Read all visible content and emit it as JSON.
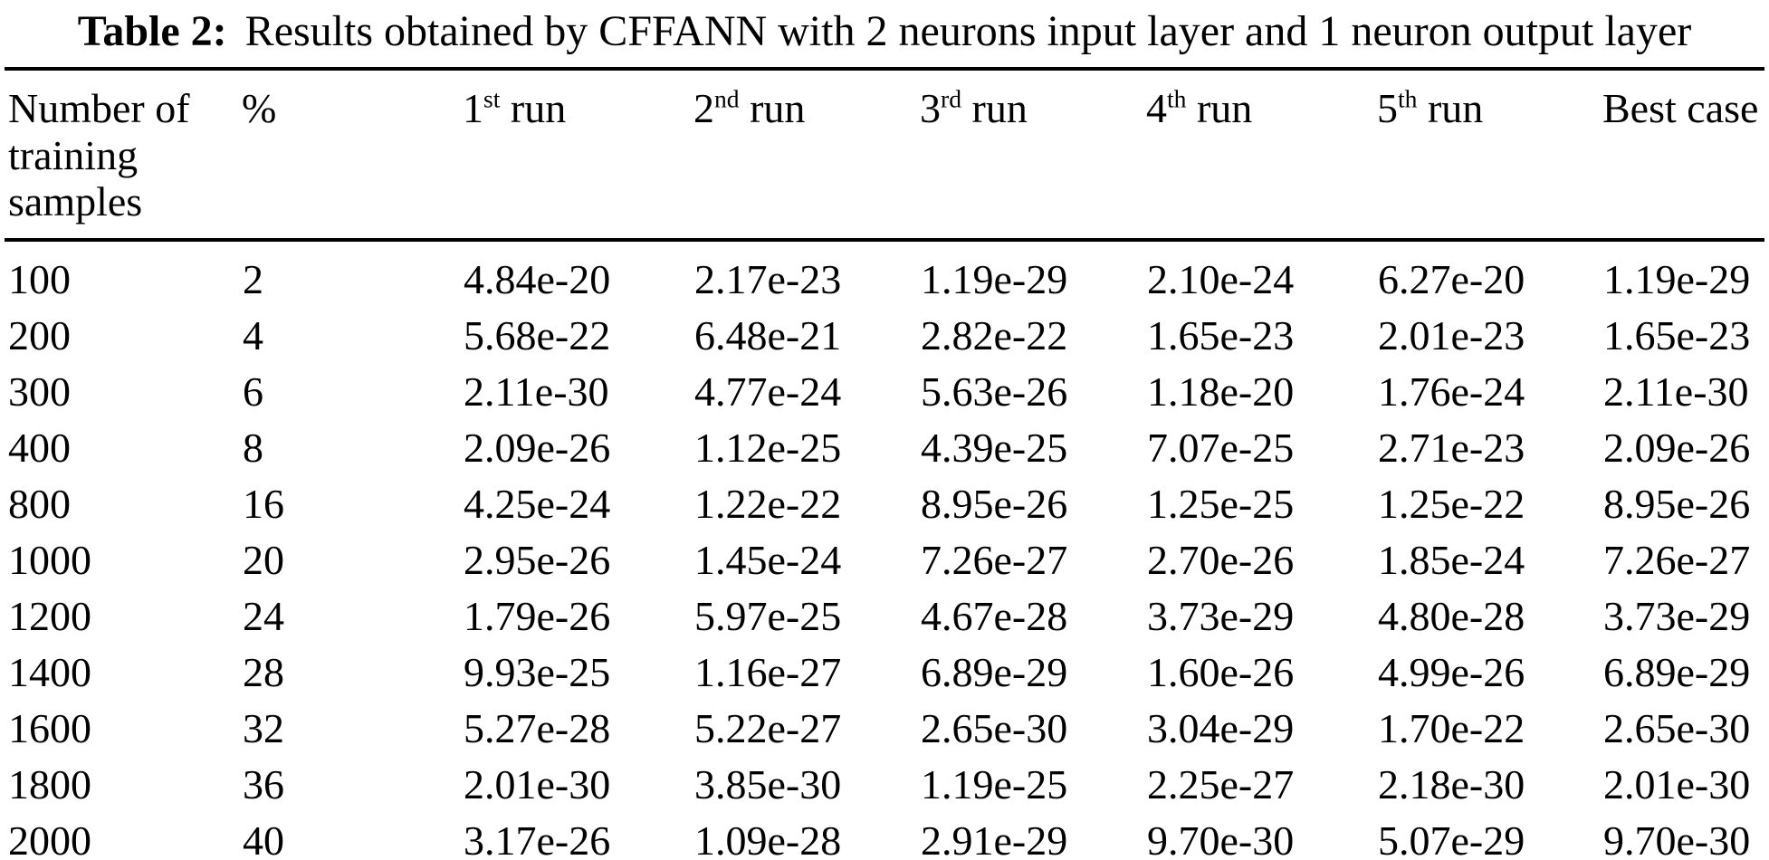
{
  "title": {
    "label": "Table 2:",
    "text": "Results obtained by CFFANN with 2 neurons input layer and 1 neuron output layer"
  },
  "colors": {
    "background": "#ffffff",
    "text": "#000000",
    "rule": "#000000"
  },
  "table": {
    "columns": [
      {
        "label": "Number of training samples"
      },
      {
        "label": "%"
      },
      {
        "num": "1",
        "sup": "st",
        "rest": " run"
      },
      {
        "num": "2",
        "sup": "nd",
        "rest": " run"
      },
      {
        "num": "3",
        "sup": "rd",
        "rest": " run"
      },
      {
        "num": "4",
        "sup": "th",
        "rest": " run"
      },
      {
        "num": "5",
        "sup": "th",
        "rest": " run"
      },
      {
        "label": "Best case"
      }
    ],
    "rows": [
      [
        "100",
        "2",
        "4.84e-20",
        "2.17e-23",
        "1.19e-29",
        "2.10e-24",
        "6.27e-20",
        "1.19e-29"
      ],
      [
        "200",
        "4",
        "5.68e-22",
        "6.48e-21",
        "2.82e-22",
        "1.65e-23",
        "2.01e-23",
        "1.65e-23"
      ],
      [
        "300",
        "6",
        "2.11e-30",
        "4.77e-24",
        "5.63e-26",
        "1.18e-20",
        "1.76e-24",
        "2.11e-30"
      ],
      [
        "400",
        "8",
        "2.09e-26",
        "1.12e-25",
        "4.39e-25",
        "7.07e-25",
        "2.71e-23",
        "2.09e-26"
      ],
      [
        "800",
        "16",
        "4.25e-24",
        "1.22e-22",
        "8.95e-26",
        "1.25e-25",
        "1.25e-22",
        "8.95e-26"
      ],
      [
        "1000",
        "20",
        "2.95e-26",
        "1.45e-24",
        "7.26e-27",
        "2.70e-26",
        "1.85e-24",
        "7.26e-27"
      ],
      [
        "1200",
        "24",
        "1.79e-26",
        "5.97e-25",
        "4.67e-28",
        "3.73e-29",
        "4.80e-28",
        "3.73e-29"
      ],
      [
        "1400",
        "28",
        "9.93e-25",
        "1.16e-27",
        "6.89e-29",
        "1.60e-26",
        "4.99e-26",
        "6.89e-29"
      ],
      [
        "1600",
        "32",
        "5.27e-28",
        "5.22e-27",
        "2.65e-30",
        "3.04e-29",
        "1.70e-22",
        "2.65e-30"
      ],
      [
        "1800",
        "36",
        "2.01e-30",
        "3.85e-30",
        "1.19e-25",
        "2.25e-27",
        "2.18e-30",
        "2.01e-30"
      ],
      [
        "2000",
        "40",
        "3.17e-26",
        "1.09e-28",
        "2.91e-29",
        "9.70e-30",
        "5.07e-29",
        "9.70e-30"
      ]
    ]
  }
}
